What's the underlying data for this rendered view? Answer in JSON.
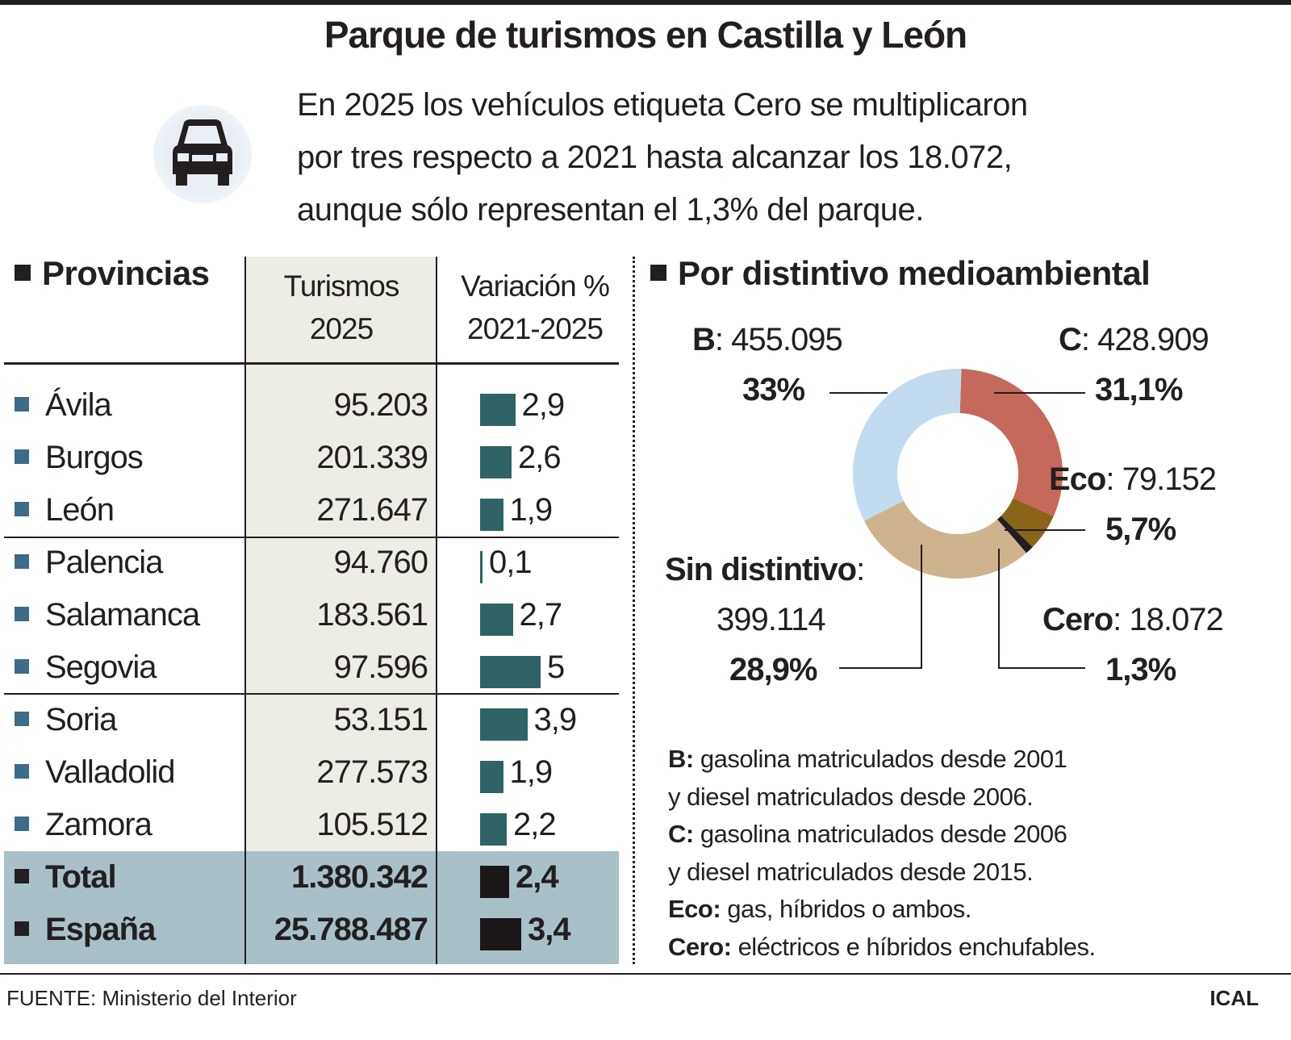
{
  "title": "Parque de turismos en Castilla y León",
  "intro": [
    "En 2025 los vehículos etiqueta Cero se multiplicaron",
    "por tres respecto a 2021 hasta alcanzar los 18.072,",
    "aunque sólo representan el 1,3% del parque."
  ],
  "icon": "car-front-icon",
  "table": {
    "section_title": "Provincias",
    "col1": [
      "Turismos",
      "2025"
    ],
    "col2": [
      "Variación %",
      "2021-2025"
    ],
    "rows": [
      {
        "name": "Ávila",
        "value": "95.203",
        "var": "2,9"
      },
      {
        "name": "Burgos",
        "value": "201.339",
        "var": "2,6"
      },
      {
        "name": "León",
        "value": "271.647",
        "var": "1,9"
      },
      {
        "name": "Palencia",
        "value": "94.760",
        "var": "0,1"
      },
      {
        "name": "Salamanca",
        "value": "183.561",
        "var": "2,7"
      },
      {
        "name": "Segovia",
        "value": "97.596",
        "var": "5"
      },
      {
        "name": "Soria",
        "value": "53.151",
        "var": "3,9"
      },
      {
        "name": "Valladolid",
        "value": "277.573",
        "var": "1,9"
      },
      {
        "name": "Zamora",
        "value": "105.512",
        "var": "2,2"
      },
      {
        "name": "Total",
        "value": "1.380.342",
        "var": "2,4"
      },
      {
        "name": "España",
        "value": "25.788.487",
        "var": "3,4"
      }
    ]
  },
  "chart_data": [
    {
      "type": "bar",
      "orientation": "horizontal",
      "categories": [
        "Ávila",
        "Burgos",
        "León",
        "Palencia",
        "Salamanca",
        "Segovia",
        "Soria",
        "Valladolid",
        "Zamora",
        "Total",
        "España"
      ],
      "values": [
        2.9,
        2.6,
        1.9,
        0.1,
        2.7,
        5,
        3.9,
        1.9,
        2.2,
        2.4,
        3.4
      ],
      "colors": {
        "province": "#2f6366",
        "total": "#1b1718"
      }
    },
    {
      "type": "pie",
      "donut": true,
      "title": "Por distintivo medioambiental",
      "slices": [
        {
          "label": "C",
          "value": "428.909",
          "pct": "31,1%",
          "share": 31.1,
          "color": "#c5695a"
        },
        {
          "label": "Eco",
          "value": "79.152",
          "pct": "5,7%",
          "share": 5.7,
          "color": "#8a6418"
        },
        {
          "label": "Cero",
          "value": "18.072",
          "pct": "1,3%",
          "share": 1.3,
          "color": "#231f20"
        },
        {
          "label": "Sin distintivo",
          "value": "399.114",
          "pct": "28,9%",
          "share": 28.9,
          "color": "#cdb48c"
        },
        {
          "label": "B",
          "value": "455.095",
          "pct": "33%",
          "share": 33,
          "color": "#c3dbef"
        }
      ]
    }
  ],
  "notes": [
    {
      "key": "B:",
      "text": " gasolina matriculados desde 2001"
    },
    {
      "key": "",
      "text": "y diesel matriculados desde 2006."
    },
    {
      "key": "C:",
      "text": " gasolina matriculados desde 2006"
    },
    {
      "key": "",
      "text": "y diesel matriculados desde 2015."
    },
    {
      "key": "Eco:",
      "text": " gas, híbridos o ambos."
    },
    {
      "key": "Cero:",
      "text": " eléctricos e híbridos enchufables."
    }
  ],
  "footer": {
    "source": "FUENTE: Ministerio del Interior",
    "brand": "ICAL"
  }
}
